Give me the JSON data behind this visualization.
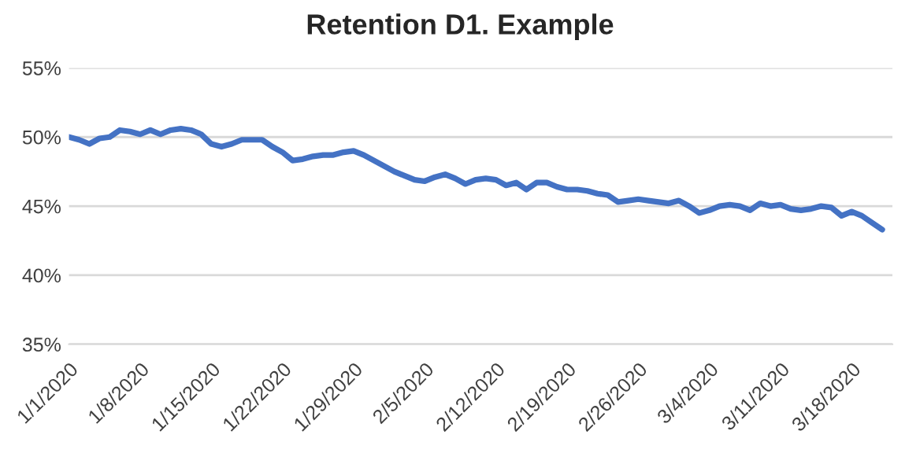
{
  "chart_data": {
    "type": "line",
    "title": "Retention D1. Example",
    "x": [
      "2020-01-01",
      "2020-01-02",
      "2020-01-03",
      "2020-01-04",
      "2020-01-05",
      "2020-01-06",
      "2020-01-07",
      "2020-01-08",
      "2020-01-09",
      "2020-01-10",
      "2020-01-11",
      "2020-01-12",
      "2020-01-13",
      "2020-01-14",
      "2020-01-15",
      "2020-01-16",
      "2020-01-17",
      "2020-01-18",
      "2020-01-19",
      "2020-01-20",
      "2020-01-21",
      "2020-01-22",
      "2020-01-23",
      "2020-01-24",
      "2020-01-25",
      "2020-01-26",
      "2020-01-27",
      "2020-01-28",
      "2020-01-29",
      "2020-01-30",
      "2020-01-31",
      "2020-02-01",
      "2020-02-02",
      "2020-02-03",
      "2020-02-04",
      "2020-02-05",
      "2020-02-06",
      "2020-02-07",
      "2020-02-08",
      "2020-02-09",
      "2020-02-10",
      "2020-02-11",
      "2020-02-12",
      "2020-02-13",
      "2020-02-14",
      "2020-02-15",
      "2020-02-16",
      "2020-02-17",
      "2020-02-18",
      "2020-02-19",
      "2020-02-20",
      "2020-02-21",
      "2020-02-22",
      "2020-02-23",
      "2020-02-24",
      "2020-02-25",
      "2020-02-26",
      "2020-02-27",
      "2020-02-28",
      "2020-02-29",
      "2020-03-01",
      "2020-03-02",
      "2020-03-03",
      "2020-03-04",
      "2020-03-05",
      "2020-03-06",
      "2020-03-07",
      "2020-03-08",
      "2020-03-09",
      "2020-03-10",
      "2020-03-11",
      "2020-03-12",
      "2020-03-13",
      "2020-03-14",
      "2020-03-15",
      "2020-03-16",
      "2020-03-17",
      "2020-03-18",
      "2020-03-19",
      "2020-03-20",
      "2020-03-21"
    ],
    "series": [
      {
        "color": "#4472c4",
        "values": [
          50.0,
          49.8,
          49.5,
          49.9,
          50.0,
          50.5,
          50.4,
          50.2,
          50.5,
          50.2,
          50.5,
          50.6,
          50.5,
          50.2,
          49.5,
          49.3,
          49.5,
          49.8,
          49.8,
          49.8,
          49.3,
          48.9,
          48.3,
          48.4,
          48.6,
          48.7,
          48.7,
          48.9,
          49.0,
          48.7,
          48.3,
          47.9,
          47.5,
          47.2,
          46.9,
          46.8,
          47.1,
          47.3,
          47.0,
          46.6,
          46.9,
          47.0,
          46.9,
          46.5,
          46.7,
          46.2,
          46.7,
          46.7,
          46.4,
          46.2,
          46.2,
          46.1,
          45.9,
          45.8,
          45.3,
          45.4,
          45.5,
          45.4,
          45.3,
          45.2,
          45.4,
          45.0,
          44.5,
          44.7,
          45.0,
          45.1,
          45.0,
          44.7,
          45.2,
          45.0,
          45.1,
          44.8,
          44.7,
          44.8,
          45.0,
          44.9,
          44.3,
          44.6,
          44.3,
          43.8,
          43.3
        ]
      }
    ],
    "xlim": [
      "2020-01-01",
      "2020-03-22"
    ],
    "xticks": [
      {
        "value": "2020-01-01",
        "label": "1/1/2020"
      },
      {
        "value": "2020-01-08",
        "label": "1/8/2020"
      },
      {
        "value": "2020-01-15",
        "label": "1/15/2020"
      },
      {
        "value": "2020-01-22",
        "label": "1/22/2020"
      },
      {
        "value": "2020-01-29",
        "label": "1/29/2020"
      },
      {
        "value": "2020-02-05",
        "label": "2/5/2020"
      },
      {
        "value": "2020-02-12",
        "label": "2/12/2020"
      },
      {
        "value": "2020-02-19",
        "label": "2/19/2020"
      },
      {
        "value": "2020-02-26",
        "label": "2/26/2020"
      },
      {
        "value": "2020-03-04",
        "label": "3/4/2020"
      },
      {
        "value": "2020-03-11",
        "label": "3/11/2020"
      },
      {
        "value": "2020-03-18",
        "label": "3/18/2020"
      }
    ],
    "ylim": [
      35,
      55
    ],
    "yticks": [
      {
        "value": 35,
        "label": "35%"
      },
      {
        "value": 40,
        "label": "40%"
      },
      {
        "value": 45,
        "label": "45%"
      },
      {
        "value": 50,
        "label": "50%"
      },
      {
        "value": 55,
        "label": "55%"
      }
    ],
    "grid": "y",
    "marker": "none",
    "line_style": "solid"
  }
}
